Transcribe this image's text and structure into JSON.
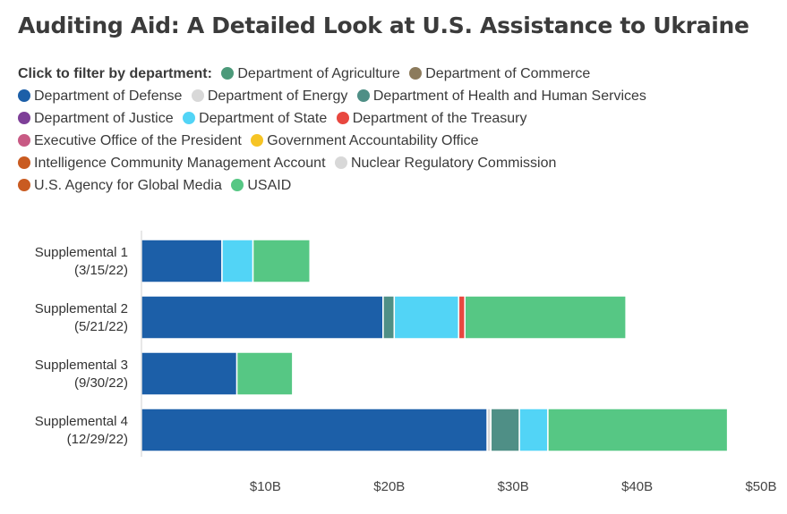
{
  "title": "Auditing Aid: A Detailed Look at U.S. Assistance to Ukraine",
  "legend": {
    "heading": "Click to filter by department:",
    "items": [
      {
        "label": "Department of Agriculture",
        "color": "#4c9a7a",
        "icon": "circle-swatch"
      },
      {
        "label": "Department of Commerce",
        "color": "#8c7b5c",
        "icon": "circle-swatch"
      },
      {
        "label": "Department of Defense",
        "color": "#1c5fa8",
        "icon": "circle-swatch"
      },
      {
        "label": "Department of Energy",
        "color": "#d8d8d8",
        "icon": "circle-swatch"
      },
      {
        "label": "Department of Health and Human Services",
        "color": "#4f8f86",
        "icon": "circle-swatch"
      },
      {
        "label": "Department of Justice",
        "color": "#7e3f98",
        "icon": "circle-swatch"
      },
      {
        "label": "Department of State",
        "color": "#52d4f6",
        "icon": "circle-swatch"
      },
      {
        "label": "Department of the Treasury",
        "color": "#e8473f",
        "icon": "circle-swatch"
      },
      {
        "label": "Executive Office of the President",
        "color": "#c85a84",
        "icon": "circle-swatch"
      },
      {
        "label": "Government Accountability Office",
        "color": "#f6c425",
        "icon": "circle-swatch"
      },
      {
        "label": "Intelligence Community Management Account",
        "color": "#c95b21",
        "icon": "circle-swatch"
      },
      {
        "label": "Nuclear Regulatory Commission",
        "color": "#d8d8d8",
        "icon": "circle-swatch"
      },
      {
        "label": "U.S. Agency for Global Media",
        "color": "#c95b21",
        "icon": "circle-swatch"
      },
      {
        "label": "USAID",
        "color": "#56c784",
        "icon": "circle-swatch"
      }
    ]
  },
  "chart_data": {
    "type": "bar",
    "orientation": "horizontal",
    "stacked": true,
    "categories": [
      {
        "line1": "Supplemental 1",
        "line2": "(3/15/22)"
      },
      {
        "line1": "Supplemental 2",
        "line2": "(5/21/22)"
      },
      {
        "line1": "Supplemental 3",
        "line2": "(9/30/22)"
      },
      {
        "line1": "Supplemental 4",
        "line2": "(12/29/22)"
      }
    ],
    "value_unit": "billion USD",
    "xlim": [
      0,
      50
    ],
    "xticks": [
      {
        "value": 10,
        "label": "$10B"
      },
      {
        "value": 20,
        "label": "$20B"
      },
      {
        "value": 30,
        "label": "$30B"
      },
      {
        "value": 40,
        "label": "$40B"
      },
      {
        "value": 50,
        "label": "$50B"
      }
    ],
    "grid": false,
    "series": [
      {
        "name": "Department of Defense",
        "color": "#1c5fa8",
        "values": [
          6.5,
          19.5,
          7.7,
          27.9
        ]
      },
      {
        "name": "Department of Energy",
        "color": "#d8d8d8",
        "values": [
          0,
          0,
          0,
          0.3
        ]
      },
      {
        "name": "Department of Health and Human Services",
        "color": "#4f8f86",
        "values": [
          0,
          0.9,
          0,
          2.3
        ]
      },
      {
        "name": "Department of State",
        "color": "#52d4f6",
        "values": [
          2.5,
          5.2,
          0,
          2.3
        ]
      },
      {
        "name": "Department of the Treasury",
        "color": "#e8473f",
        "values": [
          0,
          0.5,
          0,
          0
        ]
      },
      {
        "name": "USAID",
        "color": "#56c784",
        "values": [
          4.6,
          13.0,
          4.5,
          14.5
        ]
      }
    ]
  }
}
